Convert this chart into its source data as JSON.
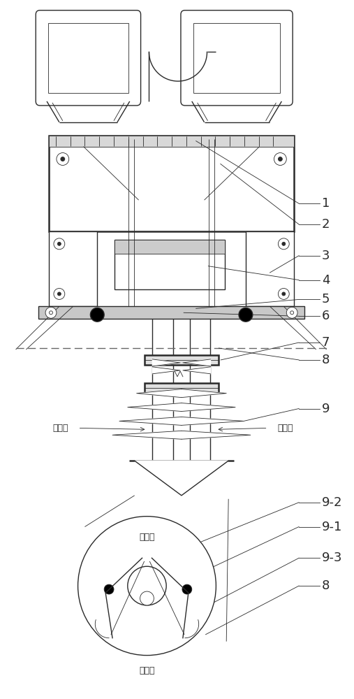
{
  "bg_color": "#ffffff",
  "lc": "#2a2a2a",
  "fig_w": 5.07,
  "fig_h": 10.0,
  "dpi": 100,
  "lw_main": 1.0,
  "lw_thick": 1.8,
  "lw_thin": 0.6,
  "label_fs": 13,
  "cn_fs": 9,
  "xlim": [
    0,
    507
  ],
  "ylim": [
    0,
    1000
  ]
}
